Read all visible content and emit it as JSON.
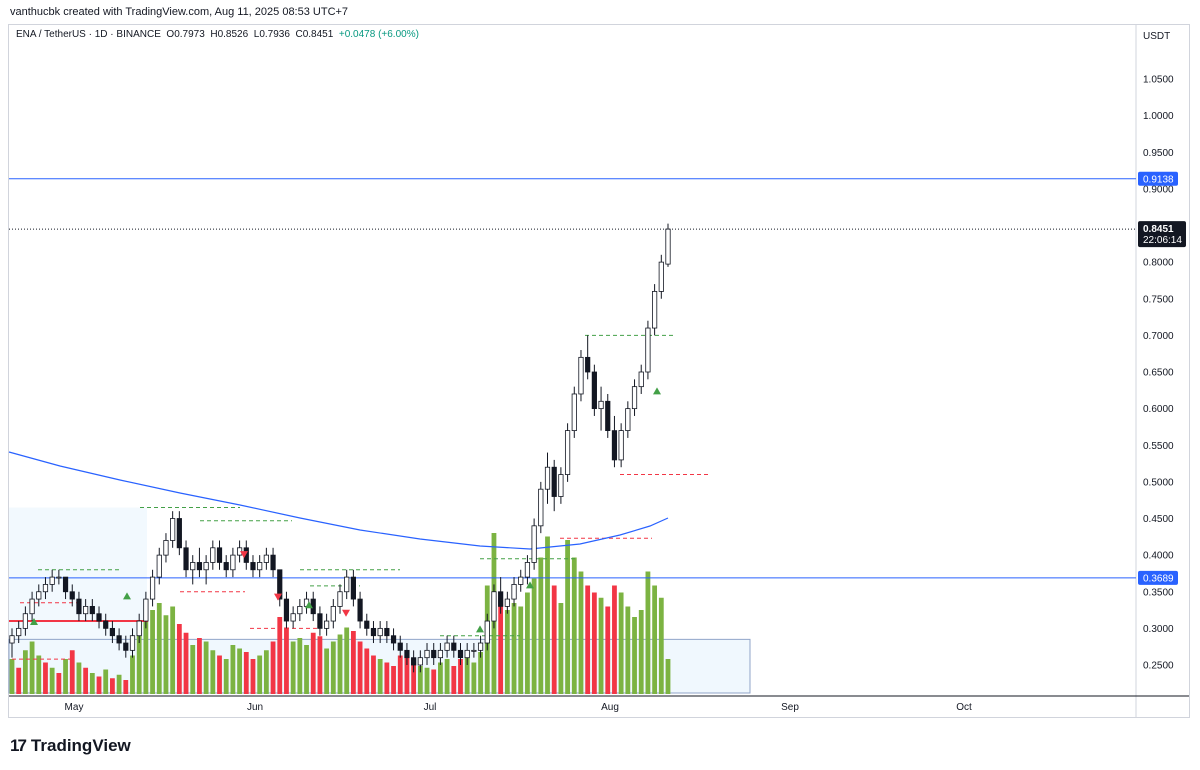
{
  "credit": "vanthucbk created with TradingView.com, Aug 11, 2025 08:53 UTC+7",
  "legend": {
    "symbol": "ENA / TetherUS · 1D · BINANCE",
    "o_label": "O",
    "o": "0.7973",
    "h_label": "H",
    "h": "0.8526",
    "l_label": "L",
    "l": "0.7936",
    "c_label": "C",
    "c": "0.8451",
    "change": "+0.0478 (+6.00%)"
  },
  "axis_currency": "USDT",
  "brand": "TradingView",
  "colors": {
    "up": "#089981",
    "down": "#f23645",
    "ma": "#2962ff",
    "vol_up": "#7cb342",
    "vol_down": "#f23645",
    "level": "#2962ff"
  },
  "chart_data": {
    "type": "candlestick",
    "y_ticks": [
      "1.0500",
      "1.0000",
      "0.9500",
      "0.9000",
      "0.8500",
      "0.8000",
      "0.7500",
      "0.7000",
      "0.6500",
      "0.6000",
      "0.5500",
      "0.5000",
      "0.4500",
      "0.4000",
      "0.3500",
      "0.3000",
      "0.2500"
    ],
    "x_ticks": [
      "May",
      "Jun",
      "Jul",
      "Aug",
      "Sep",
      "Oct"
    ],
    "levels": [
      {
        "value": 0.9138,
        "label": "0.9138"
      },
      {
        "value": 0.3689,
        "label": "0.3689"
      }
    ],
    "last_price": {
      "value": 0.8451,
      "label": "0.8451",
      "countdown": "22:06:14"
    },
    "candles": [
      [
        0.28,
        0.3,
        0.26,
        0.29
      ],
      [
        0.29,
        0.31,
        0.28,
        0.3
      ],
      [
        0.3,
        0.33,
        0.29,
        0.32
      ],
      [
        0.32,
        0.35,
        0.31,
        0.34
      ],
      [
        0.34,
        0.36,
        0.33,
        0.35
      ],
      [
        0.35,
        0.37,
        0.34,
        0.36
      ],
      [
        0.36,
        0.38,
        0.35,
        0.37
      ],
      [
        0.37,
        0.38,
        0.36,
        0.37
      ],
      [
        0.37,
        0.37,
        0.34,
        0.35
      ],
      [
        0.35,
        0.36,
        0.33,
        0.34
      ],
      [
        0.34,
        0.35,
        0.31,
        0.32
      ],
      [
        0.32,
        0.34,
        0.31,
        0.33
      ],
      [
        0.33,
        0.34,
        0.31,
        0.32
      ],
      [
        0.32,
        0.33,
        0.3,
        0.31
      ],
      [
        0.31,
        0.32,
        0.29,
        0.3
      ],
      [
        0.3,
        0.31,
        0.28,
        0.29
      ],
      [
        0.29,
        0.3,
        0.27,
        0.28
      ],
      [
        0.28,
        0.29,
        0.26,
        0.27
      ],
      [
        0.27,
        0.3,
        0.26,
        0.29
      ],
      [
        0.29,
        0.32,
        0.28,
        0.31
      ],
      [
        0.31,
        0.35,
        0.3,
        0.34
      ],
      [
        0.34,
        0.38,
        0.33,
        0.37
      ],
      [
        0.37,
        0.41,
        0.36,
        0.4
      ],
      [
        0.4,
        0.43,
        0.39,
        0.42
      ],
      [
        0.42,
        0.46,
        0.41,
        0.45
      ],
      [
        0.45,
        0.46,
        0.4,
        0.41
      ],
      [
        0.41,
        0.42,
        0.37,
        0.38
      ],
      [
        0.38,
        0.4,
        0.36,
        0.39
      ],
      [
        0.39,
        0.41,
        0.37,
        0.38
      ],
      [
        0.38,
        0.4,
        0.36,
        0.39
      ],
      [
        0.39,
        0.42,
        0.38,
        0.41
      ],
      [
        0.41,
        0.42,
        0.38,
        0.39
      ],
      [
        0.39,
        0.4,
        0.37,
        0.38
      ],
      [
        0.38,
        0.41,
        0.37,
        0.4
      ],
      [
        0.4,
        0.42,
        0.39,
        0.41
      ],
      [
        0.41,
        0.42,
        0.38,
        0.39
      ],
      [
        0.39,
        0.4,
        0.37,
        0.38
      ],
      [
        0.38,
        0.4,
        0.37,
        0.39
      ],
      [
        0.39,
        0.41,
        0.38,
        0.4
      ],
      [
        0.4,
        0.41,
        0.37,
        0.38
      ],
      [
        0.38,
        0.38,
        0.33,
        0.34
      ],
      [
        0.34,
        0.35,
        0.3,
        0.31
      ],
      [
        0.31,
        0.33,
        0.3,
        0.32
      ],
      [
        0.32,
        0.34,
        0.31,
        0.33
      ],
      [
        0.33,
        0.35,
        0.32,
        0.34
      ],
      [
        0.34,
        0.35,
        0.31,
        0.32
      ],
      [
        0.32,
        0.33,
        0.29,
        0.3
      ],
      [
        0.3,
        0.32,
        0.29,
        0.31
      ],
      [
        0.31,
        0.34,
        0.3,
        0.33
      ],
      [
        0.33,
        0.36,
        0.32,
        0.35
      ],
      [
        0.35,
        0.38,
        0.34,
        0.37
      ],
      [
        0.37,
        0.38,
        0.33,
        0.34
      ],
      [
        0.34,
        0.35,
        0.3,
        0.31
      ],
      [
        0.31,
        0.32,
        0.29,
        0.3
      ],
      [
        0.3,
        0.31,
        0.28,
        0.29
      ],
      [
        0.29,
        0.31,
        0.28,
        0.3
      ],
      [
        0.3,
        0.31,
        0.28,
        0.29
      ],
      [
        0.29,
        0.3,
        0.27,
        0.28
      ],
      [
        0.28,
        0.29,
        0.26,
        0.27
      ],
      [
        0.27,
        0.28,
        0.25,
        0.26
      ],
      [
        0.26,
        0.27,
        0.24,
        0.25
      ],
      [
        0.25,
        0.27,
        0.24,
        0.26
      ],
      [
        0.26,
        0.28,
        0.25,
        0.27
      ],
      [
        0.27,
        0.28,
        0.25,
        0.26
      ],
      [
        0.26,
        0.28,
        0.25,
        0.27
      ],
      [
        0.27,
        0.29,
        0.26,
        0.28
      ],
      [
        0.28,
        0.29,
        0.26,
        0.27
      ],
      [
        0.27,
        0.28,
        0.25,
        0.26
      ],
      [
        0.26,
        0.28,
        0.25,
        0.27
      ],
      [
        0.27,
        0.28,
        0.26,
        0.27
      ],
      [
        0.27,
        0.29,
        0.26,
        0.28
      ],
      [
        0.28,
        0.32,
        0.27,
        0.31
      ],
      [
        0.31,
        0.36,
        0.3,
        0.35
      ],
      [
        0.35,
        0.37,
        0.32,
        0.33
      ],
      [
        0.33,
        0.35,
        0.32,
        0.34
      ],
      [
        0.34,
        0.37,
        0.33,
        0.36
      ],
      [
        0.36,
        0.38,
        0.35,
        0.37
      ],
      [
        0.37,
        0.4,
        0.36,
        0.39
      ],
      [
        0.39,
        0.45,
        0.38,
        0.44
      ],
      [
        0.44,
        0.5,
        0.43,
        0.49
      ],
      [
        0.49,
        0.54,
        0.47,
        0.52
      ],
      [
        0.52,
        0.53,
        0.46,
        0.48
      ],
      [
        0.48,
        0.52,
        0.47,
        0.51
      ],
      [
        0.51,
        0.58,
        0.5,
        0.57
      ],
      [
        0.57,
        0.63,
        0.56,
        0.62
      ],
      [
        0.62,
        0.68,
        0.61,
        0.67
      ],
      [
        0.67,
        0.7,
        0.64,
        0.65
      ],
      [
        0.65,
        0.66,
        0.59,
        0.6
      ],
      [
        0.6,
        0.63,
        0.57,
        0.61
      ],
      [
        0.61,
        0.62,
        0.56,
        0.57
      ],
      [
        0.57,
        0.59,
        0.52,
        0.53
      ],
      [
        0.53,
        0.58,
        0.52,
        0.57
      ],
      [
        0.57,
        0.61,
        0.56,
        0.6
      ],
      [
        0.6,
        0.64,
        0.59,
        0.63
      ],
      [
        0.63,
        0.66,
        0.62,
        0.65
      ],
      [
        0.65,
        0.72,
        0.64,
        0.71
      ],
      [
        0.71,
        0.77,
        0.7,
        0.76
      ],
      [
        0.76,
        0.81,
        0.75,
        0.8
      ],
      [
        0.7973,
        0.8526,
        0.7936,
        0.8451
      ]
    ],
    "volume": [
      [
        "u",
        0.2
      ],
      [
        "d",
        0.15
      ],
      [
        "u",
        0.25
      ],
      [
        "u",
        0.3
      ],
      [
        "u",
        0.22
      ],
      [
        "d",
        0.18
      ],
      [
        "u",
        0.15
      ],
      [
        "d",
        0.12
      ],
      [
        "u",
        0.2
      ],
      [
        "d",
        0.25
      ],
      [
        "u",
        0.18
      ],
      [
        "d",
        0.15
      ],
      [
        "u",
        0.12
      ],
      [
        "d",
        0.1
      ],
      [
        "u",
        0.14
      ],
      [
        "d",
        0.09
      ],
      [
        "u",
        0.11
      ],
      [
        "d",
        0.08
      ],
      [
        "u",
        0.22
      ],
      [
        "u",
        0.35
      ],
      [
        "u",
        0.42
      ],
      [
        "u",
        0.48
      ],
      [
        "u",
        0.52
      ],
      [
        "u",
        0.45
      ],
      [
        "u",
        0.5
      ],
      [
        "d",
        0.4
      ],
      [
        "d",
        0.35
      ],
      [
        "u",
        0.28
      ],
      [
        "d",
        0.32
      ],
      [
        "u",
        0.3
      ],
      [
        "u",
        0.25
      ],
      [
        "d",
        0.22
      ],
      [
        "u",
        0.2
      ],
      [
        "u",
        0.28
      ],
      [
        "u",
        0.26
      ],
      [
        "d",
        0.24
      ],
      [
        "d",
        0.2
      ],
      [
        "u",
        0.22
      ],
      [
        "u",
        0.25
      ],
      [
        "d",
        0.3
      ],
      [
        "d",
        0.44
      ],
      [
        "d",
        0.38
      ],
      [
        "u",
        0.3
      ],
      [
        "u",
        0.32
      ],
      [
        "u",
        0.28
      ],
      [
        "d",
        0.35
      ],
      [
        "d",
        0.33
      ],
      [
        "u",
        0.26
      ],
      [
        "u",
        0.3
      ],
      [
        "u",
        0.34
      ],
      [
        "u",
        0.38
      ],
      [
        "d",
        0.36
      ],
      [
        "d",
        0.3
      ],
      [
        "d",
        0.26
      ],
      [
        "d",
        0.22
      ],
      [
        "u",
        0.2
      ],
      [
        "d",
        0.18
      ],
      [
        "d",
        0.16
      ],
      [
        "d",
        0.22
      ],
      [
        "d",
        0.24
      ],
      [
        "d",
        0.2
      ],
      [
        "u",
        0.16
      ],
      [
        "u",
        0.15
      ],
      [
        "d",
        0.14
      ],
      [
        "u",
        0.18
      ],
      [
        "u",
        0.2
      ],
      [
        "d",
        0.16
      ],
      [
        "d",
        0.2
      ],
      [
        "u",
        0.22
      ],
      [
        "u",
        0.18
      ],
      [
        "u",
        0.24
      ],
      [
        "u",
        0.62
      ],
      [
        "u",
        0.92
      ],
      [
        "d",
        0.55
      ],
      [
        "u",
        0.48
      ],
      [
        "u",
        0.52
      ],
      [
        "u",
        0.5
      ],
      [
        "u",
        0.58
      ],
      [
        "u",
        0.66
      ],
      [
        "u",
        0.78
      ],
      [
        "u",
        0.9
      ],
      [
        "d",
        0.62
      ],
      [
        "u",
        0.52
      ],
      [
        "u",
        0.88
      ],
      [
        "u",
        0.78
      ],
      [
        "u",
        0.7
      ],
      [
        "d",
        0.62
      ],
      [
        "d",
        0.58
      ],
      [
        "u",
        0.55
      ],
      [
        "d",
        0.5
      ],
      [
        "d",
        0.62
      ],
      [
        "u",
        0.58
      ],
      [
        "u",
        0.5
      ],
      [
        "u",
        0.44
      ],
      [
        "u",
        0.48
      ],
      [
        "u",
        0.7
      ],
      [
        "u",
        0.62
      ],
      [
        "u",
        0.55
      ],
      [
        "u",
        0.2
      ]
    ]
  }
}
